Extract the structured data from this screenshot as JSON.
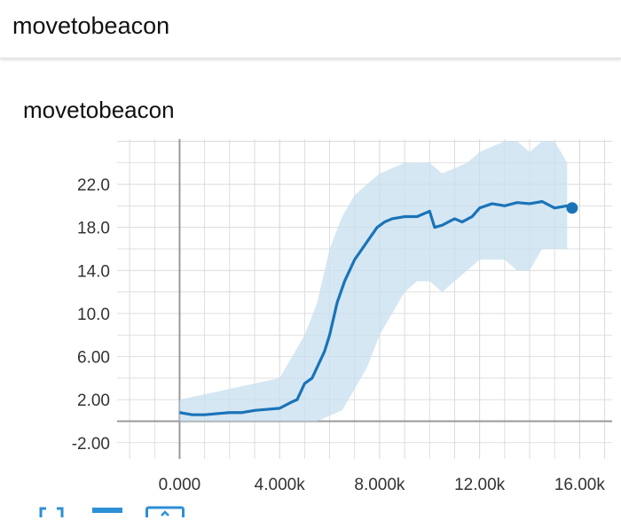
{
  "header": {
    "title": "movetobeacon"
  },
  "card": {
    "title": "movetobeacon"
  },
  "colors": {
    "smoothed_line": "#1a73b8",
    "raw_band": "#c7dfef",
    "grid": "#d6d6d6",
    "axis": "#9a9a9a"
  },
  "chart_data": {
    "type": "line",
    "title": "",
    "xlabel": "",
    "ylabel": "",
    "xlim": [
      -2500,
      17300
    ],
    "ylim": [
      -3.5,
      26.2
    ],
    "x_ticks": [
      0,
      4000,
      8000,
      12000,
      16000
    ],
    "x_tick_labels": [
      "0.000",
      "4.000k",
      "8.000k",
      "12.00k",
      "16.00k"
    ],
    "y_ticks": [
      -2,
      2,
      6,
      10,
      14,
      18,
      22
    ],
    "y_tick_labels": [
      "-2.00",
      "2.00",
      "6.00",
      "10.0",
      "14.0",
      "18.0",
      "22.0"
    ],
    "grid": true,
    "series": [
      {
        "role": "smoothed",
        "x": [
          0,
          500,
          1000,
          1500,
          2000,
          2500,
          3000,
          3500,
          4000,
          4500,
          4700,
          5000,
          5300,
          5500,
          5800,
          6000,
          6300,
          6600,
          7000,
          7300,
          7600,
          7900,
          8200,
          8500,
          9000,
          9500,
          10000,
          10200,
          10500,
          11000,
          11300,
          11700,
          12000,
          12500,
          13000,
          13500,
          14000,
          14500,
          15000,
          15500,
          15700
        ],
        "y": [
          0.8,
          0.6,
          0.6,
          0.7,
          0.8,
          0.8,
          1.0,
          1.1,
          1.2,
          1.8,
          2.0,
          3.5,
          4.0,
          5.0,
          6.5,
          8.0,
          11.0,
          13.0,
          15.0,
          16.0,
          17.0,
          18.0,
          18.5,
          18.8,
          19.0,
          19.0,
          19.5,
          18.0,
          18.2,
          18.8,
          18.5,
          19.0,
          19.8,
          20.2,
          20.0,
          20.3,
          20.2,
          20.4,
          19.8,
          20.0,
          19.8
        ]
      },
      {
        "role": "raw_max",
        "x": [
          0,
          1000,
          2000,
          3000,
          4000,
          4500,
          5000,
          5500,
          6000,
          6500,
          7000,
          7500,
          8000,
          8500,
          9000,
          9500,
          10000,
          10500,
          11000,
          11500,
          12000,
          12500,
          13000,
          13500,
          14000,
          14500,
          15000,
          15500
        ],
        "y": [
          2.0,
          2.5,
          3.0,
          3.5,
          4.0,
          6.0,
          8.0,
          11.0,
          16.0,
          19.0,
          21.0,
          22.0,
          23.0,
          23.5,
          24.0,
          24.0,
          24.0,
          23.0,
          23.5,
          24.0,
          25.0,
          25.5,
          26.0,
          26.0,
          25.0,
          26.0,
          26.0,
          24.0
        ]
      },
      {
        "role": "raw_min",
        "x": [
          0,
          1000,
          2000,
          3000,
          4000,
          4500,
          5000,
          5500,
          6000,
          6500,
          7000,
          7500,
          8000,
          8500,
          9000,
          9500,
          10000,
          10500,
          11000,
          11500,
          12000,
          12500,
          13000,
          13500,
          14000,
          14500,
          15000,
          15500
        ],
        "y": [
          0.0,
          0.0,
          0.0,
          0.0,
          0.0,
          0.0,
          0.0,
          0.0,
          0.5,
          1.0,
          3.0,
          5.0,
          8.0,
          10.0,
          12.0,
          13.0,
          13.0,
          12.0,
          13.0,
          14.0,
          15.0,
          15.0,
          15.0,
          14.0,
          14.0,
          16.0,
          16.0,
          16.0
        ]
      }
    ]
  },
  "toolbar": [
    {
      "icon": "expand-icon"
    },
    {
      "icon": "data-series-icon"
    },
    {
      "icon": "fit-domain-icon"
    }
  ]
}
